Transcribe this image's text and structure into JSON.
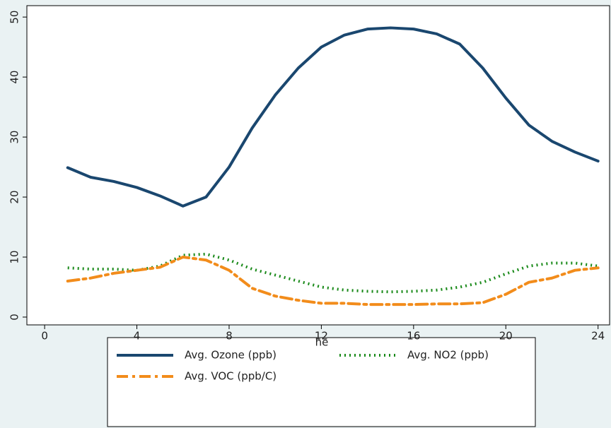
{
  "chart_data": {
    "type": "line",
    "x_label": "he",
    "x": [
      1,
      2,
      3,
      4,
      5,
      6,
      7,
      8,
      9,
      10,
      11,
      12,
      13,
      14,
      15,
      16,
      17,
      18,
      19,
      20,
      21,
      22,
      23,
      24
    ],
    "series": [
      {
        "name": "Avg. Ozone (ppb)",
        "color": "#1a476f",
        "style": "solid",
        "values": [
          24.9,
          23.3,
          22.6,
          21.6,
          20.2,
          18.5,
          20.0,
          25.0,
          31.5,
          37.0,
          41.5,
          45.0,
          47.0,
          48.0,
          48.2,
          48.0,
          47.2,
          45.5,
          41.5,
          36.5,
          32.0,
          29.3,
          27.5,
          26.0
        ]
      },
      {
        "name": "Avg. NO2 (ppb)",
        "color": "#1a8a1a",
        "style": "dot",
        "values": [
          8.2,
          8.0,
          8.0,
          7.8,
          8.5,
          10.3,
          10.5,
          9.5,
          8.0,
          7.0,
          6.0,
          5.0,
          4.5,
          4.3,
          4.2,
          4.3,
          4.5,
          5.0,
          5.8,
          7.2,
          8.5,
          9.0,
          9.0,
          8.5
        ]
      },
      {
        "name": "Avg. VOC (ppb/C)",
        "color": "#f28c1b",
        "style": "dashdot",
        "values": [
          6.0,
          6.5,
          7.3,
          7.8,
          8.3,
          10.0,
          9.5,
          7.8,
          4.8,
          3.5,
          2.8,
          2.3,
          2.3,
          2.1,
          2.1,
          2.1,
          2.2,
          2.2,
          2.4,
          3.8,
          5.8,
          6.5,
          7.8,
          8.2
        ]
      }
    ],
    "xlim": [
      -0.77,
      24.5
    ],
    "xticks": [
      0,
      4,
      8,
      12,
      16,
      20,
      24
    ],
    "ylim": [
      -1.3,
      51.9
    ],
    "yticks": [
      0,
      10,
      20,
      30,
      40,
      50
    ],
    "grid": false
  }
}
